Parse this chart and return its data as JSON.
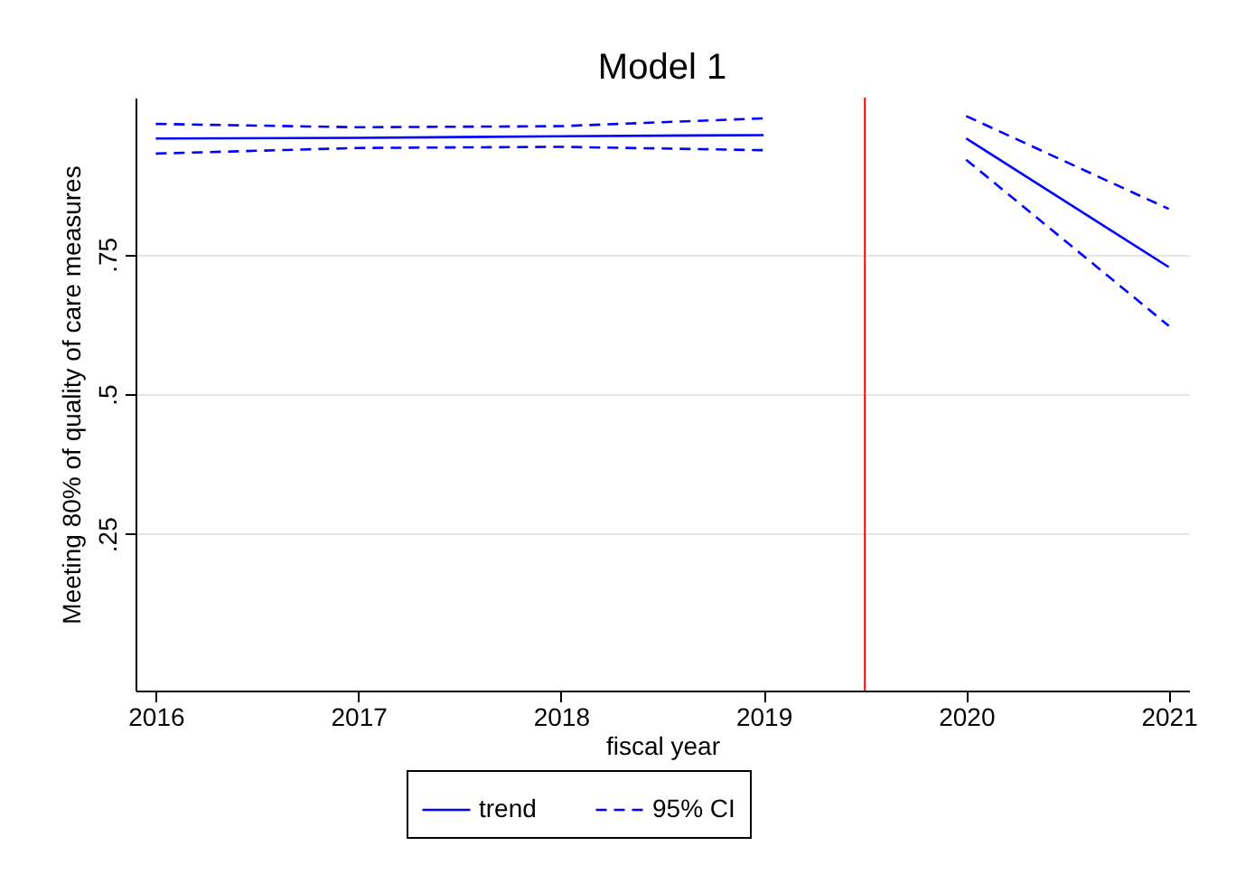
{
  "chart_data": {
    "type": "line",
    "title": "Model 1",
    "xlabel": "fiscal year",
    "ylabel": "Meeting 80% of quality of care measures",
    "xlim": [
      2015.9,
      2021.1
    ],
    "xticks": [
      2016,
      2017,
      2018,
      2019,
      2020,
      2021
    ],
    "ylim": [
      -0.03,
      1.03
    ],
    "yticks": [
      {
        "value": 0.25,
        "label": ".25"
      },
      {
        "value": 0.5,
        "label": ".5"
      },
      {
        "value": 0.75,
        "label": ".75"
      }
    ],
    "grid": "y",
    "legend": "bottom",
    "series": [
      {
        "name": "trend",
        "color": "#0000ff",
        "line_style": "solid",
        "x": [
          2016,
          2017,
          2018,
          2019
        ],
        "values": [
          0.957,
          0.958,
          0.961,
          0.963
        ]
      },
      {
        "name": "95% CI",
        "color": "#0000ff",
        "line_style": "dashed",
        "x": [
          2016,
          2017,
          2018,
          2019
        ],
        "values": [
          0.983,
          0.977,
          0.979,
          0.993
        ]
      },
      {
        "color": "#0000ff",
        "line_style": "dashed",
        "x": [
          2016,
          2017,
          2018,
          2019
        ],
        "values": [
          0.93,
          0.94,
          0.942,
          0.936
        ]
      },
      {
        "color": "#0000ff",
        "line_style": "solid",
        "x": [
          2020,
          2021
        ],
        "values": [
          0.957,
          0.727
        ]
      },
      {
        "color": "#0000ff",
        "line_style": "dashed",
        "x": [
          2020,
          2021
        ],
        "values": [
          0.997,
          0.831
        ]
      },
      {
        "color": "#0000ff",
        "line_style": "dashed",
        "x": [
          2020,
          2021
        ],
        "values": [
          0.919,
          0.622
        ]
      }
    ],
    "ref_lines": [
      {
        "axis": "x",
        "value": 2019.5,
        "color": "#ff0000"
      }
    ]
  }
}
